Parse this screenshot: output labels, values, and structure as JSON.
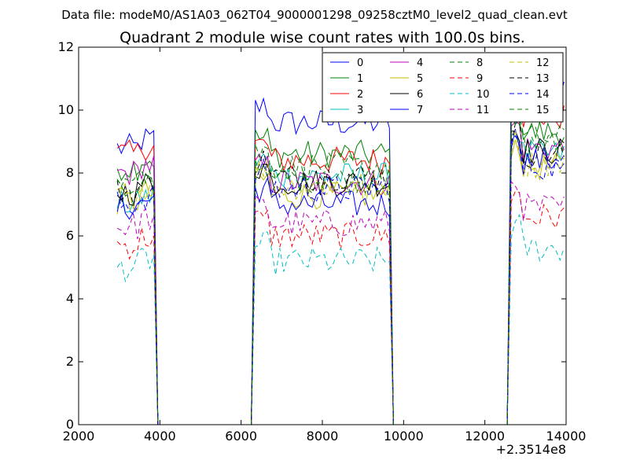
{
  "figure": {
    "suptitle": "Data file: modeM0/AS1A03_062T04_9000001298_09258cztM0_level2_quad_clean.evt"
  },
  "chart_data": {
    "type": "line",
    "title": "Quadrant 2 module wise count rates with 100.0s bins.",
    "xlabel": "",
    "ylabel": "",
    "xlim": [
      2000,
      14000
    ],
    "ylim": [
      0,
      12
    ],
    "x_offset_label": "+2.3514e8",
    "xticks": [
      "2000",
      "4000",
      "6000",
      "8000",
      "10000",
      "12000",
      "14000"
    ],
    "yticks": [
      "0",
      "2",
      "4",
      "6",
      "8",
      "10",
      "12"
    ],
    "grid": false,
    "legend": {
      "position": "top-right",
      "columns": 4
    },
    "segments": [
      {
        "x_start": 2950,
        "x_end": 3850,
        "drop_to": 3950
      },
      {
        "x_start": 6350,
        "x_end": 9650,
        "drop_to": 9850,
        "rise_from": 6250
      },
      {
        "x_start": 12650,
        "x_end": 13950,
        "rise_from": 12550
      }
    ],
    "series": [
      {
        "name": "0",
        "color": "#0000ff",
        "dash": "solid",
        "levels": [
          8.8,
          9.6,
          10.5
        ]
      },
      {
        "name": "1",
        "color": "#008000",
        "dash": "solid",
        "levels": [
          8.2,
          8.6,
          9.3
        ]
      },
      {
        "name": "2",
        "color": "#ff0000",
        "dash": "solid",
        "levels": [
          8.6,
          8.4,
          9.8
        ]
      },
      {
        "name": "3",
        "color": "#00bfbf",
        "dash": "solid",
        "levels": [
          7.0,
          7.9,
          8.6
        ]
      },
      {
        "name": "4",
        "color": "#bf00bf",
        "dash": "solid",
        "levels": [
          8.0,
          7.7,
          8.8
        ]
      },
      {
        "name": "5",
        "color": "#bfbf00",
        "dash": "solid",
        "levels": [
          7.1,
          7.3,
          8.2
        ]
      },
      {
        "name": "6",
        "color": "#000000",
        "dash": "solid",
        "levels": [
          7.4,
          7.7,
          8.7
        ]
      },
      {
        "name": "7",
        "color": "#0000ff",
        "dash": "solid",
        "levels": [
          6.9,
          7.0,
          8.4
        ]
      },
      {
        "name": "8",
        "color": "#008000",
        "dash": "dashed",
        "levels": [
          7.6,
          7.8,
          8.9
        ]
      },
      {
        "name": "9",
        "color": "#ff0000",
        "dash": "dashed",
        "levels": [
          5.7,
          6.0,
          6.6
        ]
      },
      {
        "name": "10",
        "color": "#00bfbf",
        "dash": "dashed",
        "levels": [
          5.0,
          5.2,
          5.6
        ]
      },
      {
        "name": "11",
        "color": "#bf00bf",
        "dash": "dashed",
        "levels": [
          6.3,
          6.4,
          6.9
        ]
      },
      {
        "name": "12",
        "color": "#bfbf00",
        "dash": "dashed",
        "levels": [
          7.3,
          7.6,
          8.3
        ]
      },
      {
        "name": "13",
        "color": "#000000",
        "dash": "dashed",
        "levels": [
          7.4,
          7.9,
          8.6
        ]
      },
      {
        "name": "14",
        "color": "#0000ff",
        "dash": "dashed",
        "levels": [
          7.0,
          7.5,
          8.2
        ]
      },
      {
        "name": "15",
        "color": "#008000",
        "dash": "dashed",
        "levels": [
          7.7,
          8.2,
          9.1
        ]
      }
    ]
  }
}
